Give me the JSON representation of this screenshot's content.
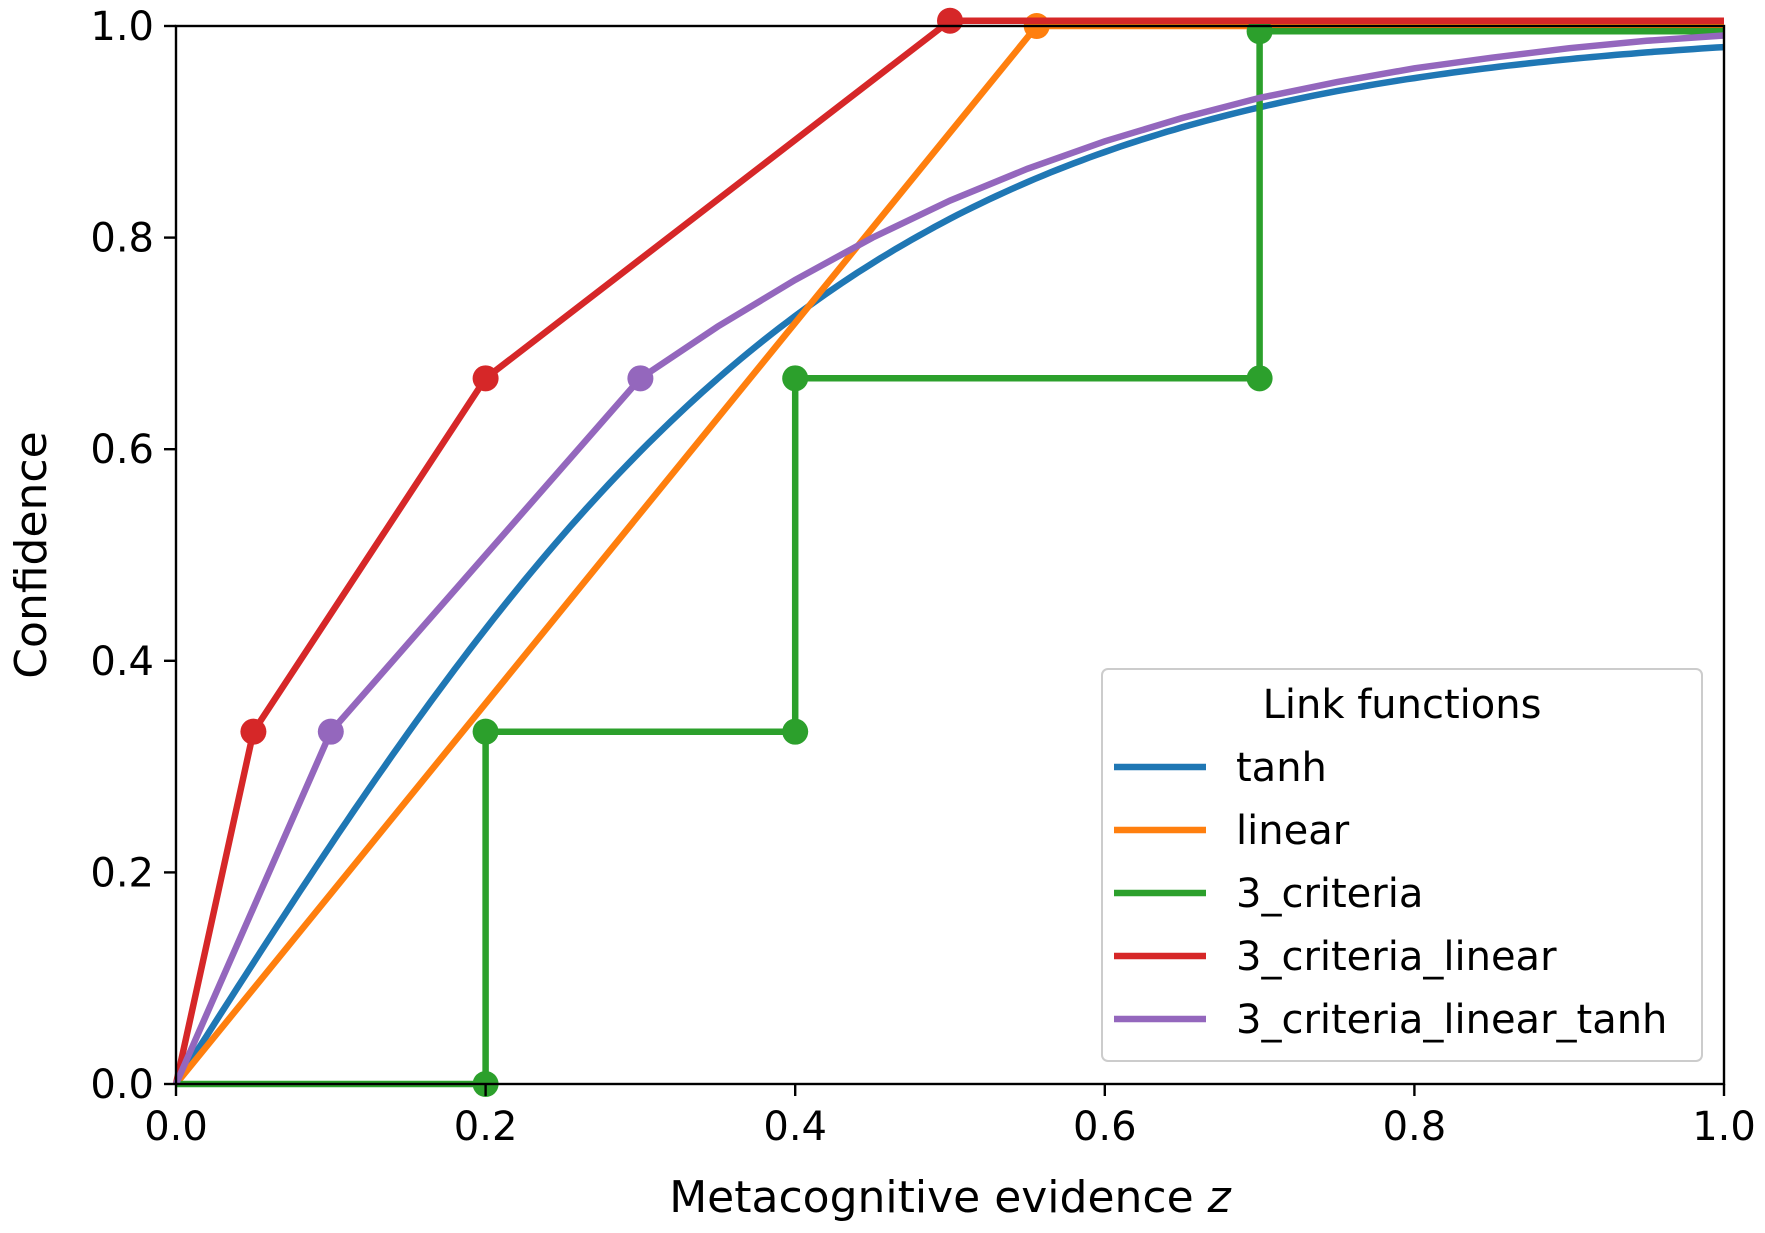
{
  "chart_data": {
    "type": "line",
    "title": "",
    "xlabel_prefix": "Metacognitive evidence ",
    "xlabel_var": "z",
    "ylabel": "Confidence",
    "xlim": [
      0,
      1
    ],
    "ylim": [
      0,
      1
    ],
    "xticks": [
      "0.0",
      "0.2",
      "0.4",
      "0.6",
      "0.8",
      "1.0"
    ],
    "yticks": [
      "0.0",
      "0.2",
      "0.4",
      "0.6",
      "0.8",
      "1.0"
    ],
    "grid": false,
    "legend": {
      "title": "Link functions",
      "position": "lower-right"
    },
    "series": [
      {
        "name": "tanh",
        "color": "#1f77b4",
        "kind": "function",
        "fn": "tanh",
        "scale": 2.3,
        "points": []
      },
      {
        "name": "linear",
        "color": "#ff7f0e",
        "kind": "polyline",
        "points": [
          [
            0,
            0
          ],
          [
            0.556,
            1.0
          ],
          [
            1.0,
            1.0
          ]
        ],
        "markers": [
          [
            0.556,
            1.0
          ]
        ]
      },
      {
        "name": "3_criteria",
        "color": "#2ca02c",
        "kind": "polyline",
        "points": [
          [
            0,
            0
          ],
          [
            0.2,
            0
          ],
          [
            0.2,
            0.333
          ],
          [
            0.4,
            0.333
          ],
          [
            0.4,
            0.667
          ],
          [
            0.7,
            0.667
          ],
          [
            0.7,
            0.995
          ],
          [
            1.0,
            0.995
          ]
        ],
        "markers": [
          [
            0.2,
            0
          ],
          [
            0.2,
            0.333
          ],
          [
            0.4,
            0.333
          ],
          [
            0.4,
            0.667
          ],
          [
            0.7,
            0.667
          ],
          [
            0.7,
            0.995
          ]
        ]
      },
      {
        "name": "3_criteria_linear",
        "color": "#d62728",
        "kind": "polyline",
        "points": [
          [
            0,
            0
          ],
          [
            0.05,
            0.333
          ],
          [
            0.2,
            0.667
          ],
          [
            0.5,
            1.005
          ],
          [
            1.0,
            1.005
          ]
        ],
        "markers": [
          [
            0.05,
            0.333
          ],
          [
            0.2,
            0.667
          ],
          [
            0.5,
            1.005
          ]
        ]
      },
      {
        "name": "3_criteria_linear_tanh",
        "color": "#9467bd",
        "kind": "polyline",
        "points": [
          [
            0,
            0
          ],
          [
            0.1,
            0.333
          ],
          [
            0.3,
            0.667
          ],
          [
            0.35,
            0.716
          ],
          [
            0.4,
            0.76
          ],
          [
            0.45,
            0.8
          ],
          [
            0.5,
            0.835
          ],
          [
            0.55,
            0.865
          ],
          [
            0.6,
            0.891
          ],
          [
            0.65,
            0.913
          ],
          [
            0.7,
            0.932
          ],
          [
            0.75,
            0.947
          ],
          [
            0.8,
            0.96
          ],
          [
            0.85,
            0.97
          ],
          [
            0.9,
            0.979
          ],
          [
            0.95,
            0.986
          ],
          [
            1.0,
            0.991
          ]
        ],
        "markers": [
          [
            0.1,
            0.333
          ],
          [
            0.3,
            0.667
          ]
        ]
      }
    ]
  }
}
